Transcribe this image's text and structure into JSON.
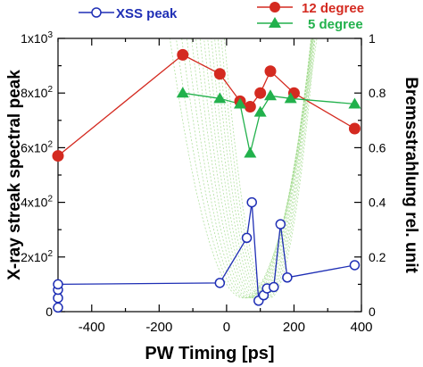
{
  "chart_data": {
    "type": "line",
    "xlabel": "PW Timing [ps]",
    "ylabel_left": "X-ray streak spectral peak",
    "ylabel_right": "Bremsstrahlung rel. unit",
    "xlim": [
      -500,
      400
    ],
    "ylim_left": [
      0,
      1000
    ],
    "ylim_right": [
      0,
      1
    ],
    "x_ticks": [
      -400,
      -200,
      0,
      200,
      400
    ],
    "y_left_ticks": [
      {
        "value": 0,
        "base": "0",
        "exp": ""
      },
      {
        "value": 200,
        "base": "2x10",
        "exp": "2"
      },
      {
        "value": 400,
        "base": "4x10",
        "exp": "2"
      },
      {
        "value": 600,
        "base": "6x10",
        "exp": "2"
      },
      {
        "value": 800,
        "base": "8x10",
        "exp": "2"
      },
      {
        "value": 1000,
        "base": "1x10",
        "exp": "3"
      }
    ],
    "y_right_ticks": [
      "0",
      "0.2",
      "0.4",
      "0.6",
      "0.8",
      "1"
    ],
    "grid": false,
    "series": [
      {
        "name": "XSS peak",
        "axis": "left",
        "color": "#1f2fb5",
        "marker": "open-circle",
        "points": [
          [
            -500,
            15
          ],
          [
            -500,
            50
          ],
          [
            -500,
            80
          ],
          [
            -500,
            100
          ],
          [
            -20,
            105
          ],
          [
            60,
            270
          ],
          [
            75,
            400
          ],
          [
            95,
            40
          ],
          [
            110,
            60
          ],
          [
            120,
            85
          ],
          [
            140,
            90
          ],
          [
            160,
            320
          ],
          [
            180,
            125
          ],
          [
            380,
            170
          ]
        ]
      },
      {
        "name": "12 degree",
        "axis": "right",
        "color": "#d42a20",
        "marker": "filled-circle",
        "points": [
          [
            -500,
            0.57
          ],
          [
            -130,
            0.94
          ],
          [
            -20,
            0.87
          ],
          [
            40,
            0.77
          ],
          [
            70,
            0.75
          ],
          [
            100,
            0.8
          ],
          [
            130,
            0.88
          ],
          [
            200,
            0.8
          ],
          [
            380,
            0.67
          ]
        ]
      },
      {
        "name": "5 degree",
        "axis": "right",
        "color": "#22b14c",
        "marker": "filled-triangle",
        "points": [
          [
            -130,
            0.8
          ],
          [
            -20,
            0.78
          ],
          [
            40,
            0.76
          ],
          [
            70,
            0.58
          ],
          [
            100,
            0.73
          ],
          [
            130,
            0.79
          ],
          [
            190,
            0.78
          ],
          [
            380,
            0.76
          ]
        ]
      }
    ],
    "legend_position": "top"
  }
}
